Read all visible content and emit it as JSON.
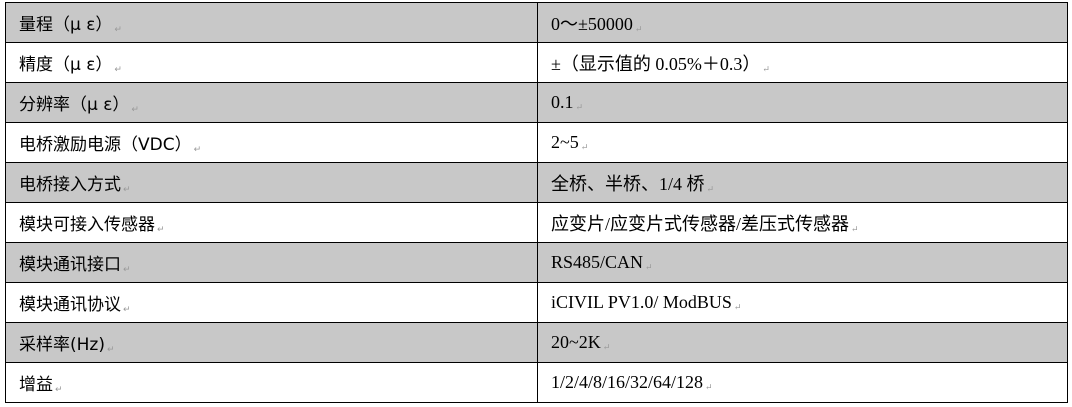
{
  "rows": [
    {
      "label": "量程（μ ε）",
      "value": "0～±50000"
    },
    {
      "label": "精度（μ ε）",
      "value": "±（显示值的 0.05%＋0.3）"
    },
    {
      "label": "分辨率（μ ε）",
      "value": "0.1"
    },
    {
      "label": "电桥激励电源（VDC）",
      "value": "2~5"
    },
    {
      "label": "电桥接入方式",
      "value": "全桥、半桥、1/4 桥"
    },
    {
      "label": "模块可接入传感器",
      "value": "应变片/应变片式传感器/差压式传感器"
    },
    {
      "label": "模块通讯接口",
      "value": "RS485/CAN"
    },
    {
      "label": "模块通讯协议",
      "value": "iCIVIL PV1.0/ ModBUS"
    },
    {
      "label": "采样率(Hz)",
      "value": "20~2K"
    },
    {
      "label": "增益",
      "value": "1/2/4/8/16/32/64/128"
    }
  ],
  "colors": {
    "shaded_row": "#c8c8c8",
    "border": "#000000"
  }
}
